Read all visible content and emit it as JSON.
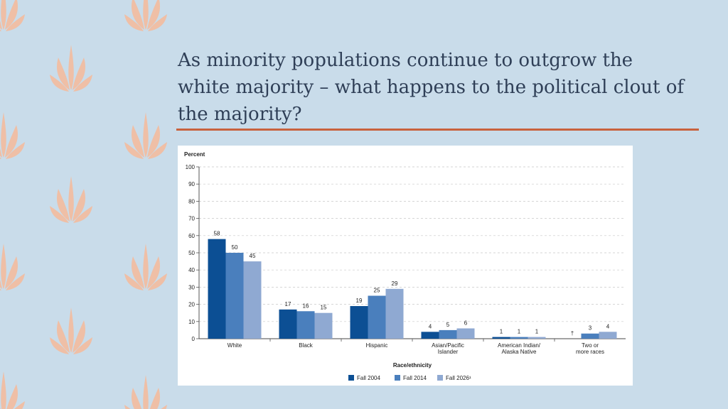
{
  "slide": {
    "title": "As minority populations continue to outgrow the white majority – what happens to the political clout of the majority?",
    "background_color": "#c9dcea",
    "accent_rule_color": "#c8623e",
    "decoration_icon": "leaf-sprig-icon",
    "decoration_color": "#efbfa6"
  },
  "chart_data": {
    "type": "bar",
    "ylabel": "Percent",
    "xlabel": "Race/ethnicity",
    "ylim": [
      0,
      100
    ],
    "yticks": [
      0,
      10,
      20,
      30,
      40,
      50,
      60,
      70,
      80,
      90,
      100
    ],
    "grid": true,
    "legend_position": "bottom",
    "categories": [
      [
        "White"
      ],
      [
        "Black"
      ],
      [
        "Hispanic"
      ],
      [
        "Asian/Pacific",
        "Islander"
      ],
      [
        "American Indian/",
        "Alaska Native"
      ],
      [
        "Two or",
        "more races"
      ]
    ],
    "series": [
      {
        "name": "Fall 2004",
        "color": "#0c4f94",
        "values": [
          58,
          17,
          19,
          4,
          1,
          null
        ],
        "labels": [
          "58",
          "17",
          "19",
          "4",
          "1",
          "†"
        ]
      },
      {
        "name": "Fall 2014",
        "color": "#4a7fbd",
        "values": [
          50,
          16,
          25,
          5,
          1,
          3
        ],
        "labels": [
          "50",
          "16",
          "25",
          "5",
          "1",
          "3"
        ]
      },
      {
        "name": "Fall 2026¹",
        "color": "#8fa9d2",
        "values": [
          45,
          15,
          29,
          6,
          1,
          4
        ],
        "labels": [
          "45",
          "15",
          "29",
          "6",
          "1",
          "4"
        ]
      }
    ]
  }
}
